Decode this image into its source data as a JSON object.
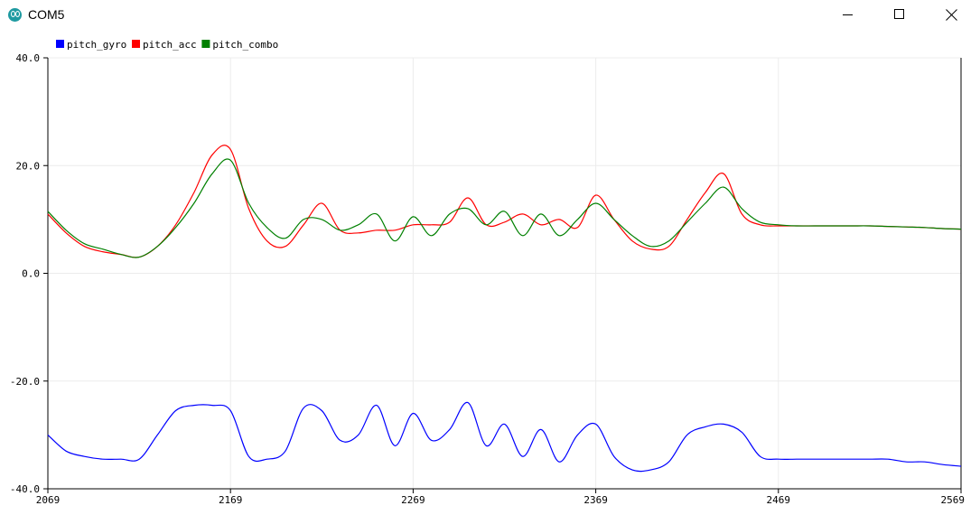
{
  "window": {
    "title": "COM5",
    "icon": "arduino-icon",
    "controls": [
      "minimize-icon",
      "maximize-icon",
      "close-icon"
    ]
  },
  "chart_data": {
    "type": "line",
    "xlim": [
      2069,
      2569
    ],
    "ylim": [
      -40,
      40
    ],
    "x_ticks": [
      "2069",
      "2169",
      "2269",
      "2369",
      "2469",
      "2569"
    ],
    "y_ticks": [
      "40.0",
      "20.0",
      "0.0",
      "-20.0",
      "-40.0"
    ],
    "grid": true,
    "legend_position": "top-left",
    "x": [
      2069,
      2079,
      2089,
      2099,
      2109,
      2119,
      2129,
      2139,
      2149,
      2159,
      2169,
      2179,
      2189,
      2199,
      2209,
      2219,
      2229,
      2239,
      2249,
      2259,
      2269,
      2279,
      2289,
      2299,
      2309,
      2319,
      2329,
      2339,
      2349,
      2359,
      2369,
      2379,
      2389,
      2399,
      2409,
      2419,
      2429,
      2439,
      2449,
      2459,
      2469,
      2479,
      2489,
      2499,
      2509,
      2519,
      2529,
      2539,
      2549,
      2559,
      2569
    ],
    "series": [
      {
        "name": "pitch_gyro",
        "color": "#0000ff",
        "values": [
          -30,
          -33,
          -34,
          -34.5,
          -34.5,
          -34.5,
          -30,
          -25.5,
          -24.5,
          -24.5,
          -25.5,
          -34,
          -34.5,
          -33,
          -25,
          -25.5,
          -31,
          -30,
          -24.5,
          -32,
          -26,
          -31,
          -29,
          -24,
          -32,
          -28,
          -34,
          -29,
          -35,
          -30,
          -28,
          -34,
          -36.5,
          -36.5,
          -35,
          -30,
          -28.5,
          -28,
          -29.5,
          -34,
          -34.5,
          -34.5,
          -34.5,
          -34.5,
          -34.5,
          -34.5,
          -34.5,
          -35,
          -35,
          -35.5,
          -35.8
        ]
      },
      {
        "name": "pitch_acc",
        "color": "#ff0000",
        "values": [
          11,
          7.5,
          5,
          4,
          3.5,
          3,
          5,
          9,
          15,
          22,
          23,
          12,
          6,
          5,
          9,
          13,
          8,
          7.5,
          8,
          8,
          9,
          9,
          9.5,
          14,
          9,
          9.5,
          11,
          9,
          10,
          8.5,
          14.5,
          10,
          6,
          4.5,
          5,
          10,
          15,
          18.5,
          11,
          9,
          8.8,
          8.8,
          8.8,
          8.8,
          8.8,
          8.8,
          8.7,
          8.6,
          8.5,
          8.3,
          8.2
        ]
      },
      {
        "name": "pitch_combo",
        "color": "#008000",
        "values": [
          11.5,
          8,
          5.5,
          4.5,
          3.5,
          3,
          5,
          8.5,
          13,
          18.5,
          21,
          13,
          8.5,
          6.5,
          10,
          10,
          8,
          9,
          11,
          6,
          10.5,
          7,
          11,
          12,
          9,
          11.5,
          7,
          11,
          7,
          10,
          13,
          10,
          7,
          5,
          6,
          9.5,
          13,
          16,
          12,
          9.5,
          9,
          8.8,
          8.8,
          8.8,
          8.8,
          8.8,
          8.7,
          8.6,
          8.5,
          8.3,
          8.2
        ]
      }
    ]
  }
}
